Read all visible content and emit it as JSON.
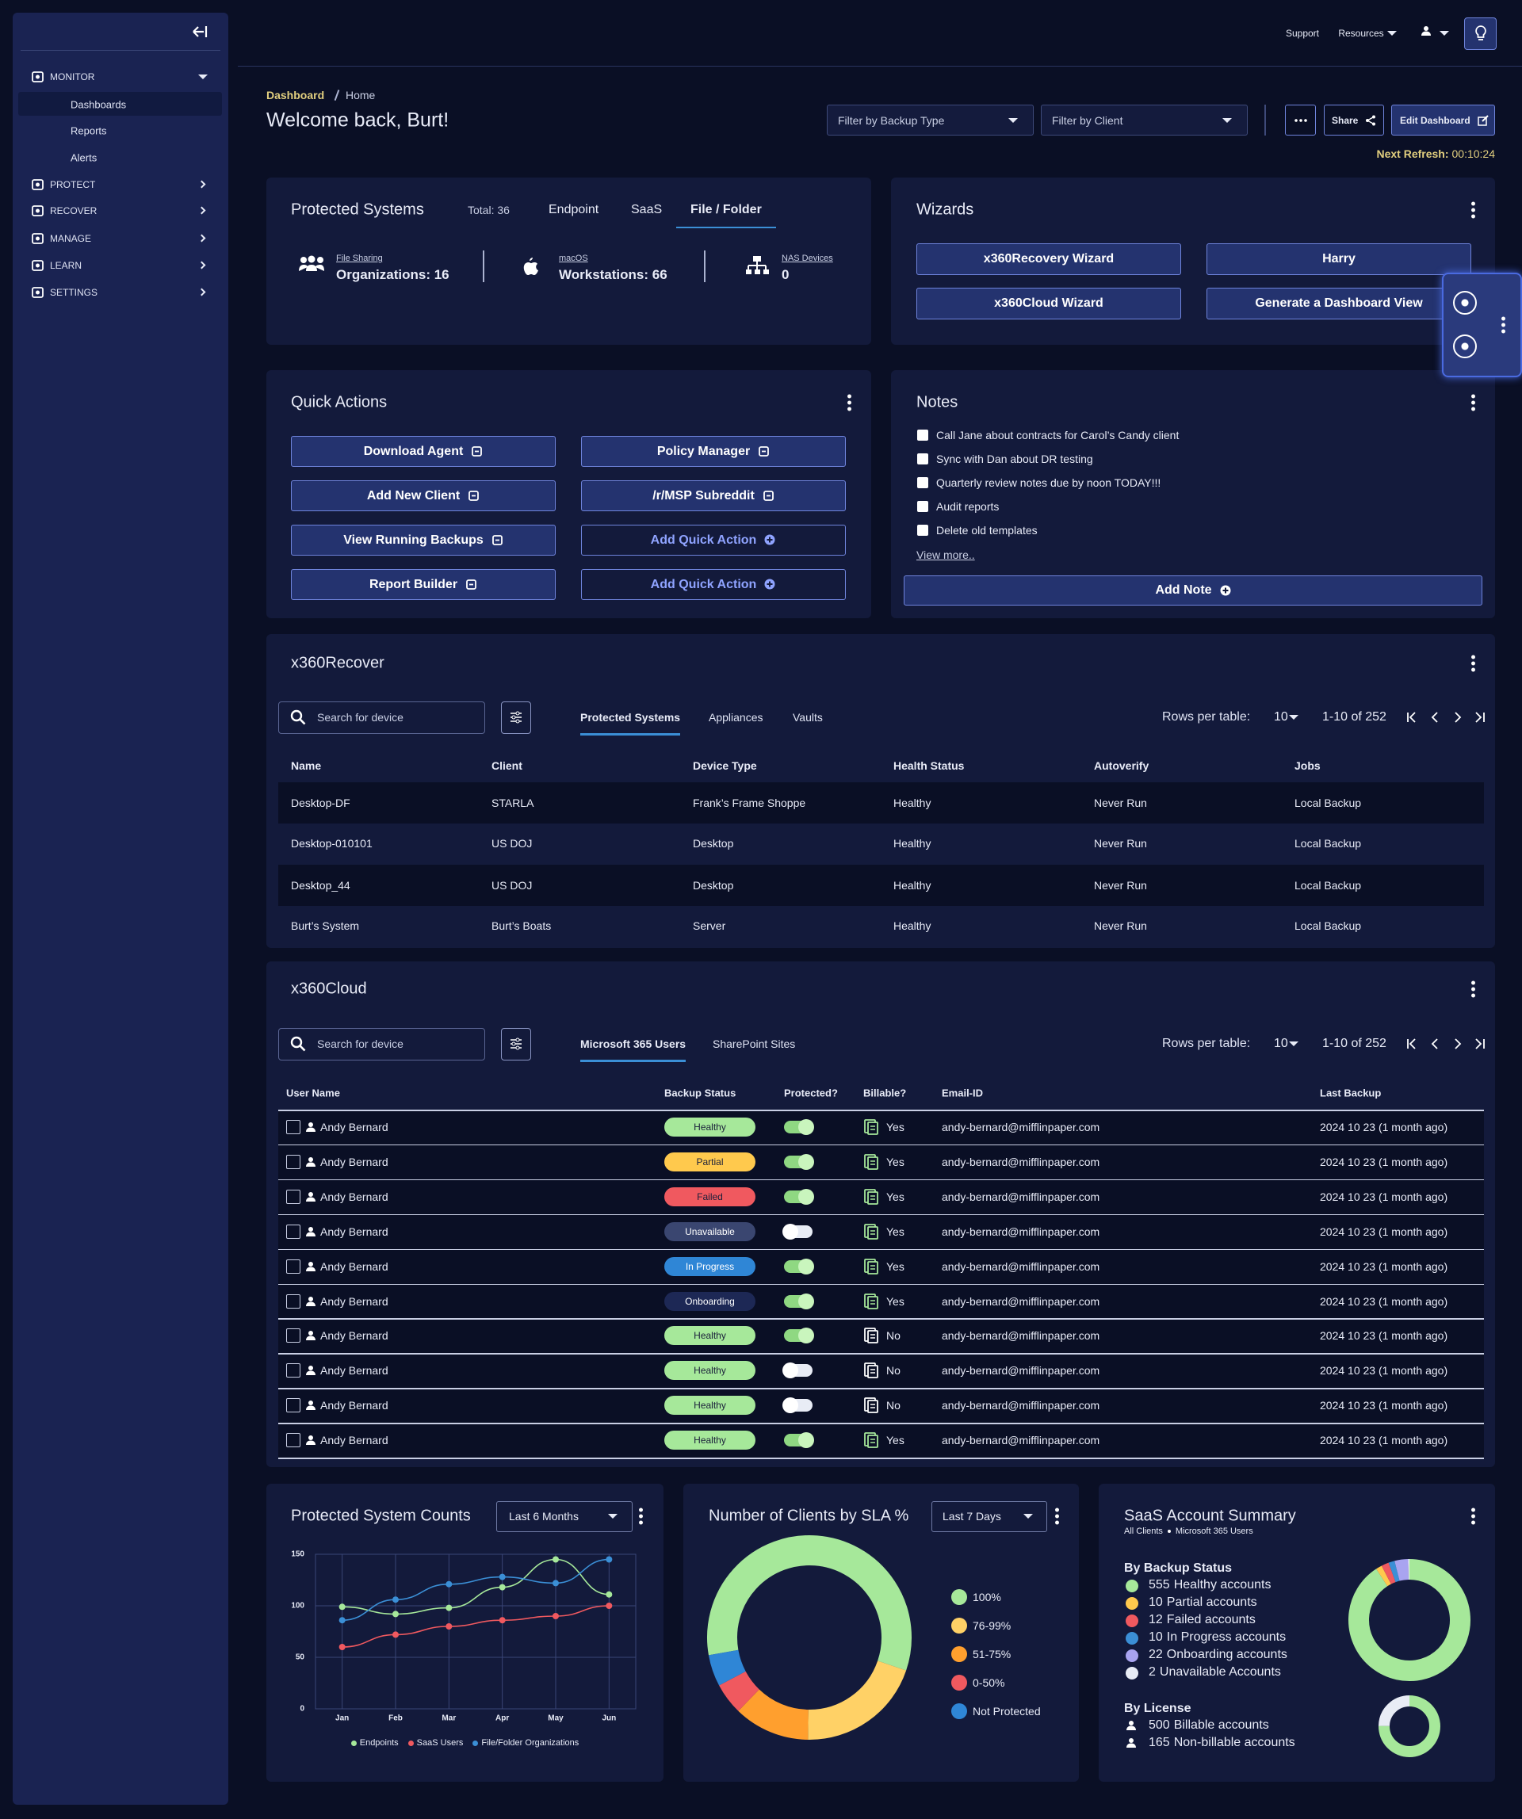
{
  "sidebar": {
    "sections": [
      {
        "label": "MONITOR",
        "items": [
          "Dashboards",
          "Reports",
          "Alerts"
        ]
      },
      {
        "label": "PROTECT"
      },
      {
        "label": "RECOVER"
      },
      {
        "label": "MANAGE"
      },
      {
        "label": "LEARN"
      },
      {
        "label": "SETTINGS"
      }
    ]
  },
  "topbar": {
    "support": "Support",
    "resources": "Resources"
  },
  "header": {
    "breadcrumb": [
      "Dashboard",
      "Home"
    ],
    "welcome": "Welcome back, Burt!",
    "filters": [
      "Filter by Backup Type",
      "Filter by Client"
    ],
    "share": "Share",
    "edit": "Edit Dashboard",
    "refresh_label": "Next Refresh:",
    "refresh_time": "00:10:24"
  },
  "protected_systems": {
    "title": "Protected Systems",
    "total": "Total: 36",
    "tabs": [
      "Endpoint",
      "SaaS",
      "File / Folder"
    ],
    "active_tab": 2,
    "stats": [
      {
        "caption": "File Sharing",
        "text": "Organizations: 16"
      },
      {
        "caption": "macOS",
        "text": "Workstations: 66"
      },
      {
        "caption": "NAS Devices",
        "text": 0
      }
    ]
  },
  "wizards": {
    "title": "Wizards",
    "buttons": [
      "x360Recovery Wizard",
      "Harry",
      "x360Cloud Wizard",
      "Generate a Dashboard View"
    ]
  },
  "quick_actions": {
    "title": "Quick Actions",
    "buttons": [
      {
        "label": "Download Agent"
      },
      {
        "label": "Policy Manager"
      },
      {
        "label": "Add New Client"
      },
      {
        "label": "/r/MSP Subreddit"
      },
      {
        "label": "View Running Backups"
      },
      {
        "label": "Add Quick Action",
        "variant": "outline"
      },
      {
        "label": "Report Builder"
      },
      {
        "label": "Add Quick Action",
        "variant": "outline"
      }
    ]
  },
  "notes": {
    "title": "Notes",
    "items": [
      "Call Jane about contracts for Carol’s Candy client",
      "Sync with Dan about DR testing",
      "Quarterly review notes due by noon TODAY!!!",
      "Audit reports",
      "Delete old templates"
    ],
    "view_more": "View more..",
    "add": "Add Note"
  },
  "recover": {
    "title": "x360Recover",
    "search": "Search for device",
    "tabs": [
      "Protected Systems",
      "Appliances",
      "Vaults"
    ],
    "active_tab": 0,
    "rows_per_table": "Rows per table:",
    "rows_value": 10,
    "range": "1-10 of 252",
    "columns": [
      "Name",
      "Client",
      "Device Type",
      "Health Status",
      "Autoverify",
      "Jobs"
    ],
    "rows": [
      [
        "Desktop-DF",
        "STARLA",
        "Frank’s Frame Shoppe",
        "Healthy",
        "Never Run",
        "Local Backup"
      ],
      [
        "Desktop-010101",
        "US DOJ",
        "Desktop",
        "Healthy",
        "Never Run",
        "Local Backup"
      ],
      [
        "Desktop_44",
        "US DOJ",
        "Desktop",
        "Healthy",
        "Never Run",
        "Local Backup"
      ],
      [
        "Burt’s System",
        "Burt’s Boats",
        "Server",
        "Healthy",
        "Never Run",
        "Local Backup"
      ]
    ]
  },
  "cloud": {
    "title": "x360Cloud",
    "search": "Search for device",
    "tabs": [
      "Microsoft 365 Users",
      "SharePoint Sites"
    ],
    "active_tab": 0,
    "rows_per_table": "Rows per table:",
    "rows_value": 10,
    "range": "1-10 of 252",
    "columns": [
      "User Name",
      "Backup Status",
      "Protected?",
      "Billable?",
      "Email-ID",
      "Last Backup"
    ],
    "rows": [
      {
        "user": "Andy Bernard",
        "status": "Healthy",
        "status_color": "#a6e89a",
        "protected": true,
        "billable": "Yes",
        "email": "andy-bernard@mifflinpaper.com",
        "last_backup": "2024 10 23 (1 month ago)"
      },
      {
        "user": "Andy Bernard",
        "status": "Partial",
        "status_color": "#ffc94d",
        "protected": true,
        "billable": "Yes",
        "email": "andy-bernard@mifflinpaper.com",
        "last_backup": "2024 10 23 (1 month ago)"
      },
      {
        "user": "Andy Bernard",
        "status": "Failed",
        "status_color": "#f0595f",
        "protected": true,
        "billable": "Yes",
        "email": "andy-bernard@mifflinpaper.com",
        "last_backup": "2024 10 23 (1 month ago)"
      },
      {
        "user": "Andy Bernard",
        "status": "Unavailable",
        "status_color": "#3a4670",
        "protected": false,
        "billable": "Yes",
        "email": "andy-bernard@mifflinpaper.com",
        "last_backup": "2024 10 23 (1 month ago)"
      },
      {
        "user": "Andy Bernard",
        "status": "In Progress",
        "status_color": "#2f86d6",
        "protected": true,
        "billable": "Yes",
        "email": "andy-bernard@mifflinpaper.com",
        "last_backup": "2024 10 23 (1 month ago)"
      },
      {
        "user": "Andy Bernard",
        "status": "Onboarding",
        "status_color": "#1d2855",
        "protected": true,
        "billable": "Yes",
        "email": "andy-bernard@mifflinpaper.com",
        "last_backup": "2024 10 23 (1 month ago)"
      },
      {
        "user": "Andy Bernard",
        "status": "Healthy",
        "status_color": "#a6e89a",
        "protected": true,
        "billable": "No",
        "email": "andy-bernard@mifflinpaper.com",
        "last_backup": "2024 10 23 (1 month ago)"
      },
      {
        "user": "Andy Bernard",
        "status": "Healthy",
        "status_color": "#a6e89a",
        "protected": false,
        "billable": "No",
        "email": "andy-bernard@mifflinpaper.com",
        "last_backup": "2024 10 23 (1 month ago)"
      },
      {
        "user": "Andy Bernard",
        "status": "Healthy",
        "status_color": "#a6e89a",
        "protected": false,
        "billable": "No",
        "email": "andy-bernard@mifflinpaper.com",
        "last_backup": "2024 10 23 (1 month ago)"
      },
      {
        "user": "Andy Bernard",
        "status": "Healthy",
        "status_color": "#a6e89a",
        "protected": true,
        "billable": "Yes",
        "email": "andy-bernard@mifflinpaper.com",
        "last_backup": "2024 10 23 (1 month ago)"
      }
    ]
  },
  "chart_data": [
    {
      "type": "line",
      "title": "Protected System Counts",
      "period": "Last 6 Months",
      "categories": [
        "Jan",
        "Feb",
        "Mar",
        "Apr",
        "May",
        "Jun"
      ],
      "series": [
        {
          "name": "Endpoints",
          "color": "#a6e89a",
          "values": [
            99,
            92,
            98,
            118,
            145,
            111
          ]
        },
        {
          "name": "SaaS Users",
          "color": "#f0595f",
          "values": [
            60,
            72,
            80,
            86,
            90,
            100
          ]
        },
        {
          "name": "File/Folder Organizations",
          "color": "#3b8fd6",
          "values": [
            86,
            106,
            121,
            128,
            122,
            145
          ]
        }
      ],
      "ylim": [
        0,
        150
      ],
      "yticks": [
        0,
        50,
        100,
        150
      ],
      "grid": true
    },
    {
      "type": "pie",
      "title": "Number of Clients by SLA %",
      "period": "Last 7 Days",
      "donut": true,
      "categories": [
        "100%",
        "76-99%",
        "51-75%",
        "0-50%",
        "Not Protected"
      ],
      "values": [
        58,
        20,
        12,
        5,
        5
      ],
      "colors": [
        "#a6e89a",
        "#ffd166",
        "#ff9f2e",
        "#f0595f",
        "#2f86d6"
      ]
    }
  ],
  "saas_summary": {
    "title": "SaaS Account Summary",
    "subtitle": [
      "All Clients",
      "Microsoft 365 Users"
    ],
    "status": {
      "title": "By Backup Status",
      "counts": [
        555,
        10,
        12,
        10,
        22,
        2
      ],
      "labels": [
        "Healthy accounts",
        "Partial accounts",
        "Failed accounts",
        "In Progress accounts",
        "Onboarding accounts",
        "Unavailable Accounts"
      ],
      "colors": [
        "#a6e89a",
        "#ffc94d",
        "#f0595f",
        "#3b8fd6",
        "#a9a4f0",
        "#e8ecf5"
      ]
    },
    "license": {
      "title": "By License",
      "counts": [
        500,
        165
      ],
      "labels": [
        "Billable accounts",
        "Non-billable accounts"
      ],
      "colors": [
        "#a6e89a",
        "#e8ecf5"
      ]
    }
  }
}
